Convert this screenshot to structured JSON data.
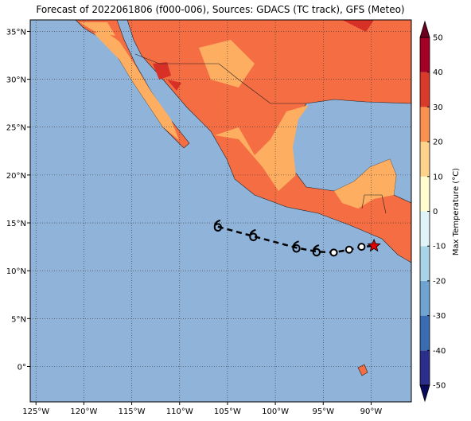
{
  "map": {
    "type": "map",
    "title": "Forecast of 2022061806 (f000-006), Sources: GDACS (TC track), GFS (Meteo)",
    "xlim": [
      -125.6,
      -85.8
    ],
    "ylim": [
      -3.7,
      36.2
    ],
    "xticks": [
      {
        "value": -125,
        "label": "125°W"
      },
      {
        "value": -120,
        "label": "120°W"
      },
      {
        "value": -115,
        "label": "115°W"
      },
      {
        "value": -110,
        "label": "110°W"
      },
      {
        "value": -105,
        "label": "105°W"
      },
      {
        "value": -100,
        "label": "100°W"
      },
      {
        "value": -95,
        "label": "95°W"
      },
      {
        "value": -90,
        "label": "90°W"
      }
    ],
    "yticks": [
      {
        "value": 0,
        "label": "0°"
      },
      {
        "value": 5,
        "label": "5°N"
      },
      {
        "value": 10,
        "label": "10°N"
      },
      {
        "value": 15,
        "label": "15°N"
      },
      {
        "value": 20,
        "label": "20°N"
      },
      {
        "value": 25,
        "label": "25°N"
      },
      {
        "value": 30,
        "label": "30°N"
      },
      {
        "value": 35,
        "label": "35°N"
      }
    ],
    "grid": true,
    "track": {
      "lon": [
        -106.0,
        -102.3,
        -97.8,
        -95.7,
        -93.9,
        -92.3,
        -91.0,
        -89.7
      ],
      "lat": [
        14.6,
        13.6,
        12.4,
        12.0,
        11.9,
        12.2,
        12.5,
        12.6
      ],
      "color": "#000000",
      "current_color": "#e00000"
    },
    "colorbar": {
      "label": "Max Temperature (°C)",
      "lim": [
        -50,
        50
      ],
      "ticks": [
        -50,
        -40,
        -30,
        -20,
        -10,
        0,
        10,
        20,
        30,
        40,
        50
      ],
      "colors": [
        "#2c2e8c",
        "#3a6cb2",
        "#6ea4cf",
        "#a9d4e8",
        "#e0f3f8",
        "#fffcd0",
        "#fdd38c",
        "#f99150",
        "#d93a2a",
        "#a50026"
      ],
      "under_color": "#0a0a5c",
      "over_color": "#6b0020"
    }
  }
}
